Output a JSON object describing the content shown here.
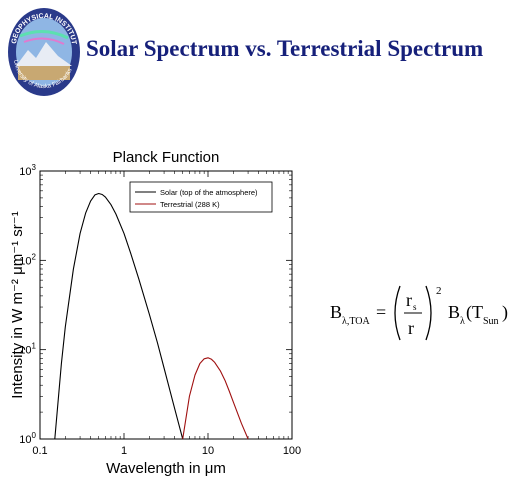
{
  "page": {
    "title": "Solar Spectrum vs. Terrestrial Spectrum",
    "logo": {
      "top_text": "GEOPHYSICAL INSTITUTE",
      "bottom_text": "University of Alaska Fairbanks"
    }
  },
  "formula": {
    "lhs": "B",
    "lhs_sub": "λ,TOA",
    "eq": "=",
    "frac_num": "r",
    "frac_num_sub": "s",
    "frac_den": "r",
    "exponent": "2",
    "rhs": "B",
    "rhs_sub": "λ",
    "arg": "T",
    "arg_sub": "Sun"
  },
  "chart_data": {
    "type": "line",
    "title": "Planck Function",
    "xlabel": "Wavelength in μm",
    "ylabel": "Intensity in W m⁻² μm⁻¹ sr⁻¹",
    "x_scale": "log",
    "y_scale": "log",
    "xlim": [
      0.1,
      100
    ],
    "ylim": [
      1,
      1000
    ],
    "x_ticks": [
      {
        "value": 0.1,
        "label": "0.1"
      },
      {
        "value": 1,
        "label": "1"
      },
      {
        "value": 10,
        "label": "10"
      },
      {
        "value": 100,
        "label": "100"
      }
    ],
    "y_ticks": [
      {
        "value": 1,
        "base": "10",
        "exp": "0"
      },
      {
        "value": 10,
        "base": "10",
        "exp": "1"
      },
      {
        "value": 100,
        "base": "10",
        "exp": "2"
      },
      {
        "value": 1000,
        "base": "10",
        "exp": "3"
      }
    ],
    "legend": "top-right",
    "grid": false,
    "series": [
      {
        "name": "Solar (top of the atmosphere)",
        "color": "#000000",
        "x": [
          0.15,
          0.18,
          0.2,
          0.25,
          0.3,
          0.35,
          0.4,
          0.45,
          0.5,
          0.55,
          0.6,
          0.7,
          0.8,
          1.0,
          1.2,
          1.5,
          2.0,
          2.5,
          3.0,
          4.0,
          5.0
        ],
        "y": [
          1.0,
          7,
          18,
          80,
          200,
          340,
          460,
          540,
          560,
          545,
          510,
          420,
          330,
          200,
          120,
          62,
          25,
          12,
          6.2,
          2.2,
          1.0
        ]
      },
      {
        "name": "Terrestrial (288 K)",
        "color": "#a01010",
        "x": [
          5.0,
          6.0,
          7.0,
          8.0,
          9.0,
          10.0,
          11.0,
          12.0,
          14.0,
          16.0,
          18.0,
          20.0,
          25.0,
          30.0
        ],
        "y": [
          1.0,
          3.0,
          5.2,
          7.0,
          7.9,
          8.1,
          7.8,
          7.2,
          5.8,
          4.5,
          3.4,
          2.6,
          1.5,
          1.0
        ]
      }
    ]
  }
}
